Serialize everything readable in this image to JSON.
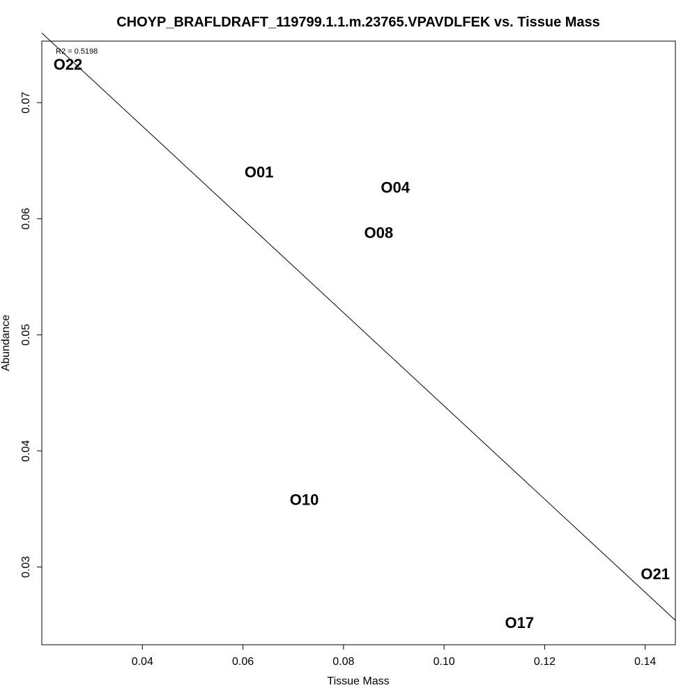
{
  "chart_data": {
    "type": "scatter",
    "title": "CHOYP_BRAFLDRAFT_119799.1.1.m.23765.VPAVDLFEK vs. Tissue Mass",
    "xlabel": "Tissue Mass",
    "ylabel": "Abundance",
    "xlim": [
      0.02,
      0.146
    ],
    "ylim": [
      0.0233,
      0.0753
    ],
    "x_ticks": [
      0.04,
      0.06,
      0.08,
      0.1,
      0.12,
      0.14
    ],
    "x_tick_labels": [
      "0.04",
      "0.06",
      "0.08",
      "0.10",
      "0.12",
      "0.14"
    ],
    "y_ticks": [
      0.03,
      0.04,
      0.05,
      0.06,
      0.07
    ],
    "y_tick_labels": [
      "0.03",
      "0.04",
      "0.05",
      "0.06",
      "0.07"
    ],
    "annotation": "R2 = 0.5198",
    "grid": false,
    "points": [
      {
        "label": "O22",
        "x": 0.0252,
        "y": 0.0733
      },
      {
        "label": "O01",
        "x": 0.0632,
        "y": 0.064
      },
      {
        "label": "O04",
        "x": 0.0903,
        "y": 0.0627
      },
      {
        "label": "O08",
        "x": 0.087,
        "y": 0.0588
      },
      {
        "label": "O10",
        "x": 0.0722,
        "y": 0.0358
      },
      {
        "label": "O17",
        "x": 0.115,
        "y": 0.0252
      },
      {
        "label": "O21",
        "x": 0.142,
        "y": 0.0294
      }
    ],
    "fit_line": {
      "x": [
        0.02,
        0.146
      ],
      "y": [
        0.076,
        0.0254
      ]
    }
  }
}
